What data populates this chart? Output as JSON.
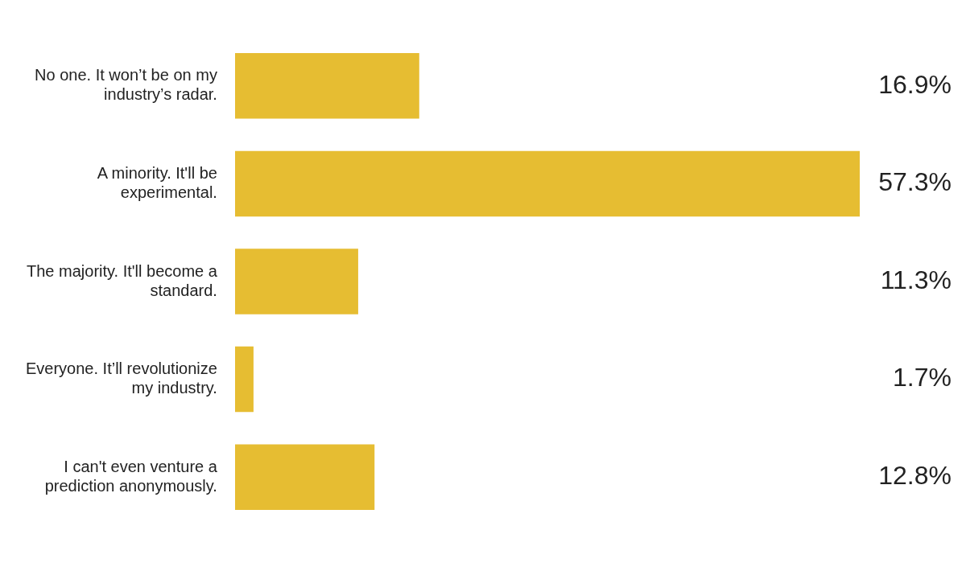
{
  "chart_data": {
    "type": "bar",
    "orientation": "horizontal",
    "categories": [
      "No one. It won’t be on my industry’s radar.",
      "A minority. It'll be experimental.",
      "The majority. It'll become a standard.",
      "Everyone. It’ll revolutionize my industry.",
      "I can't even venture a prediction anonymously."
    ],
    "values": [
      16.9,
      57.3,
      11.3,
      1.7,
      12.8
    ],
    "value_labels": [
      "16.9%",
      "57.3%",
      "11.3%",
      "1.7%",
      "12.8%"
    ],
    "color": "#e6bd32",
    "grid": false,
    "legend": false
  }
}
